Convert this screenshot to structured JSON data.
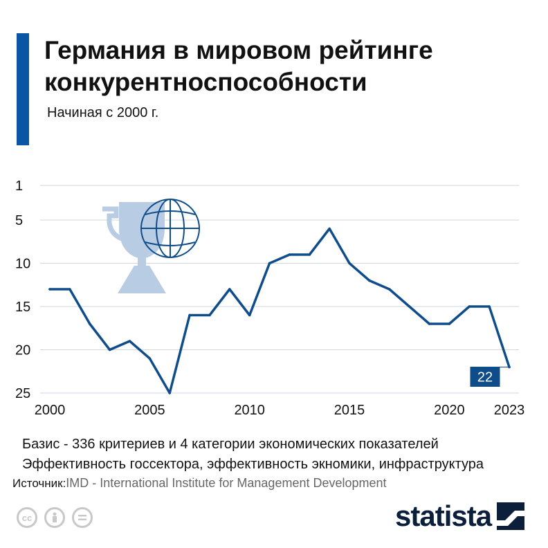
{
  "header": {
    "title_line1": "Германия в мировом рейтинге",
    "title_line2": "конкурентноспособности",
    "subtitle": "Начиная с 2000 г."
  },
  "footer": {
    "note1": "Базис - 336 критериев и 4 категории экономических показателей",
    "note2": "Эффективность госсектора, эффективность экномики, инфраструктура",
    "source_label": "Источник:",
    "source_value": "IMD - International Institute for Management Development",
    "brand": "statista"
  },
  "colors": {
    "accent": "#0a56a5",
    "line": "#0f4c8a",
    "trophy": "#b8cce4",
    "grid": "#cfd6de",
    "brand": "#0b1f3b"
  },
  "icons": [
    "trophy-globe-icon",
    "cc-icon",
    "by-icon",
    "nd-icon",
    "statista-logo-icon"
  ],
  "chart_data": {
    "type": "line",
    "title": "Германия в мировом рейтинге конкурентноспособности",
    "subtitle": "Начиная с 2000 г.",
    "xlabel": "",
    "ylabel": "",
    "x": [
      2000,
      2001,
      2002,
      2003,
      2004,
      2005,
      2006,
      2007,
      2008,
      2009,
      2010,
      2011,
      2012,
      2013,
      2014,
      2015,
      2016,
      2017,
      2018,
      2019,
      2020,
      2021,
      2022,
      2023
    ],
    "series": [
      {
        "values": [
          13,
          13,
          17,
          20,
          19,
          21,
          25,
          16,
          16,
          13,
          16,
          10,
          9,
          9,
          6,
          10,
          12,
          13,
          15,
          17,
          17,
          15,
          15,
          22
        ]
      }
    ],
    "x_ticks": [
      "2000",
      "2005",
      "2010",
      "2015",
      "2020",
      "2023"
    ],
    "y_ticks": [
      "1",
      "5",
      "10",
      "15",
      "20",
      "25"
    ],
    "ylim": [
      1,
      25
    ],
    "y_inverted": true,
    "grid": true,
    "annotations": [
      {
        "x": 2023,
        "y": 22,
        "text": "22"
      }
    ]
  }
}
